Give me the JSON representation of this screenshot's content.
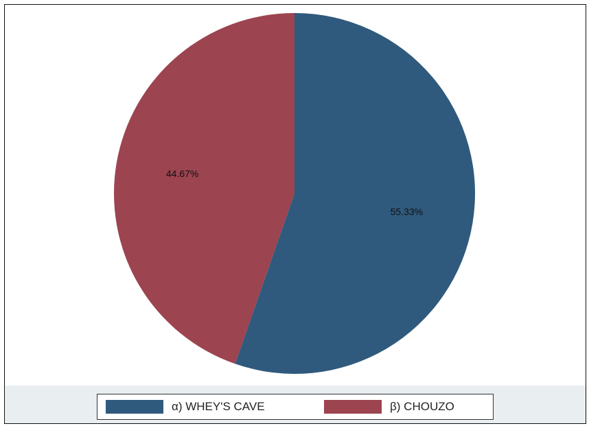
{
  "chart_data": {
    "type": "pie",
    "categories": [
      "α) WHEY'S CAVE",
      "β) CHOUZO"
    ],
    "values": [
      55.33,
      44.67
    ],
    "value_labels": [
      "55.33%",
      "44.67%"
    ],
    "colors": [
      "#2f5a7d",
      "#9c4450"
    ],
    "start_angle_deg": 0,
    "direction": "clockwise",
    "legend_position": "bottom",
    "title": ""
  }
}
